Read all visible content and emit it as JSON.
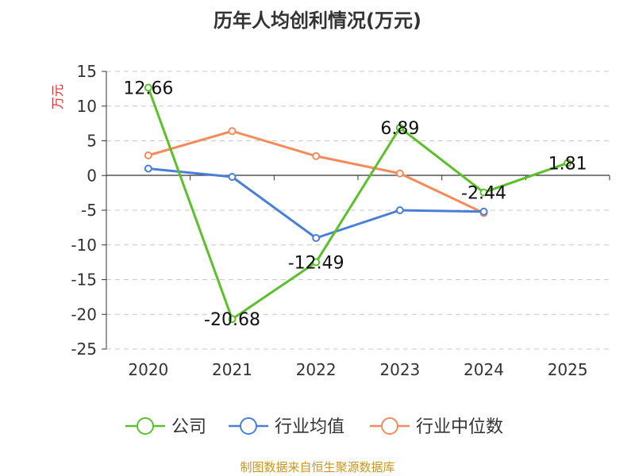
{
  "chart_data": {
    "type": "line",
    "title": "历年人均创利情况(万元)",
    "ylabel": "万元",
    "xlabel": "",
    "categories": [
      "2020",
      "2021",
      "2022",
      "2023",
      "2024",
      "2025"
    ],
    "ylim": [
      -25,
      15
    ],
    "yticks": [
      15,
      10,
      5,
      0,
      -5,
      -10,
      -15,
      -20,
      -25
    ],
    "grid": true,
    "legend_position": "bottom",
    "series": [
      {
        "name": "公司",
        "color": "#5cc02a",
        "values": [
          12.66,
          -20.68,
          -12.49,
          6.89,
          -2.44,
          1.81
        ],
        "labels": [
          "12.66",
          "-20.68",
          "-12.49",
          "6.89",
          "-2.44",
          "1.81"
        ]
      },
      {
        "name": "行业均值",
        "color": "#4a7fd8",
        "values": [
          1.0,
          -0.2,
          -9.0,
          -5.0,
          -5.2,
          null
        ]
      },
      {
        "name": "行业中位数",
        "color": "#f58a5a",
        "values": [
          2.9,
          6.4,
          2.8,
          0.3,
          -5.4,
          null
        ]
      }
    ]
  },
  "footer": {
    "source": "制图数据来自恒生聚源数据库"
  }
}
